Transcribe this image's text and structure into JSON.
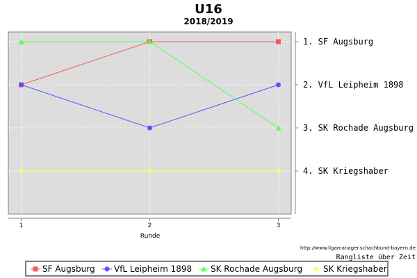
{
  "chart_data": {
    "type": "line",
    "title": "U16",
    "subtitle": "2018/2019",
    "xlabel": "Runde",
    "x": [
      1,
      2,
      3
    ],
    "xlim": [
      0.9,
      3.1
    ],
    "ylim": [
      1,
      4
    ],
    "y_inverted": true,
    "grid": true,
    "legend_position": "bottom",
    "right_labels": [
      "1. SF Augsburg",
      "2. VfL Leipheim 1898",
      "3. SK Rochade Augsburg",
      "4. SK Kriegshaber"
    ],
    "series": [
      {
        "name": "SF Augsburg",
        "values": [
          2,
          1,
          1
        ],
        "color": "#ff5555",
        "marker": "square"
      },
      {
        "name": "VfL Leipheim 1898",
        "values": [
          2,
          3,
          2
        ],
        "color": "#5555ff",
        "marker": "circle"
      },
      {
        "name": "SK Rochade Augsburg",
        "values": [
          1,
          1,
          3
        ],
        "color": "#55ff55",
        "marker": "triangle"
      },
      {
        "name": "SK Kriegshaber",
        "values": [
          4,
          4,
          4
        ],
        "color": "#ffff55",
        "marker": "diamond"
      }
    ],
    "source_url": "http://www.ligamanager.schachbund-bayern.de",
    "caption": "Rangliste über Zeit"
  },
  "colors": {
    "plot_background": "#dddddd",
    "grid": "#ffffff",
    "axis": "#808080"
  }
}
